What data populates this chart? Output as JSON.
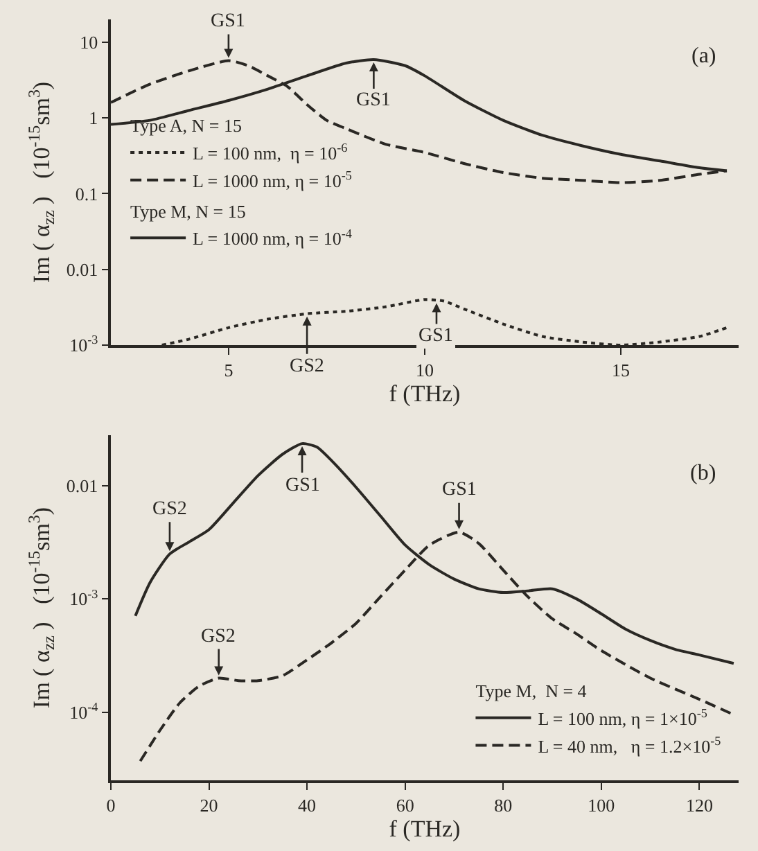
{
  "chart_data": [
    {
      "type": "line",
      "xlabel": "f (THz)",
      "ylabel": "Im ( α$_{zz}$ )   (10$^{-15}$sm$^{3}$)",
      "log": true,
      "legend": "center left",
      "xlim": [
        2,
        18
      ],
      "ylim": [
        0.001,
        20
      ],
      "xticks": [
        5,
        10,
        15
      ],
      "yticks": [
        {
          "value": 10,
          "label": "10"
        },
        1,
        0.1,
        0.01,
        {
          "value": 0.001,
          "label": "10$^{-3}$"
        }
      ],
      "series": [
        {
          "name": "L = 100 nm,  η = 10$^{-6}$",
          "color": "#2a2824",
          "line_style": "dotted",
          "x": [
            3.3,
            4,
            5,
            6,
            7,
            8,
            9,
            10,
            10.5,
            11,
            12,
            13,
            14,
            15,
            16,
            17,
            17.7
          ],
          "values": [
            0.001,
            0.0012,
            0.0017,
            0.0022,
            0.0026,
            0.0028,
            0.0032,
            0.004,
            0.0038,
            0.003,
            0.0019,
            0.0013,
            0.0011,
            0.001,
            0.0011,
            0.0013,
            0.0017
          ]
        },
        {
          "name": "L = 1000 nm, η = 10$^{-5}$",
          "color": "#2a2824",
          "line_style": "dashed",
          "x": [
            2,
            3,
            4,
            5,
            5.5,
            6,
            6.5,
            7,
            7.5,
            8,
            9,
            10,
            11,
            12,
            13,
            14,
            15,
            16,
            17,
            17.7
          ],
          "values": [
            1.6,
            2.8,
            4.2,
            5.7,
            4.9,
            3.6,
            2.6,
            1.5,
            0.93,
            0.72,
            0.45,
            0.35,
            0.25,
            0.19,
            0.16,
            0.15,
            0.14,
            0.15,
            0.18,
            0.2
          ]
        },
        {
          "name": "L = 1000 nm, η = 10$^{-4}$",
          "color": "#2a2824",
          "line_style": "solid",
          "x": [
            2,
            3,
            4,
            5,
            6,
            7,
            8,
            8.7,
            9.5,
            10,
            11,
            12,
            13,
            14,
            15,
            16,
            17,
            17.7
          ],
          "values": [
            0.82,
            0.93,
            1.26,
            1.7,
            2.4,
            3.6,
            5.3,
            5.9,
            4.9,
            3.6,
            1.7,
            0.93,
            0.59,
            0.43,
            0.33,
            0.27,
            0.22,
            0.2
          ]
        }
      ],
      "annotations": [
        "(a)",
        "Type A, N = 15",
        "Type M, N = 15",
        {
          "text": "GS1",
          "x": 5,
          "y": 5.7
        },
        {
          "text": "GS1",
          "x": 8.7,
          "y": 5.9
        },
        {
          "text": "GS2",
          "x": 7,
          "y": 0.0026
        },
        {
          "text": "GS1",
          "x": 10.3,
          "y": 0.0039
        }
      ]
    },
    {
      "type": "line",
      "xlabel": "f (THz)",
      "ylabel": "Im ( α$_{zz}$ )   (10$^{-15}$sm$^{3}$)",
      "log": true,
      "legend": "bottom",
      "xlim": [
        0,
        128
      ],
      "ylim": [
        2.5e-05,
        0.028
      ],
      "xticks": [
        0,
        20,
        40,
        60,
        80,
        100,
        120
      ],
      "yticks": [
        0.01,
        {
          "value": 0.001,
          "label": "10$^{-3}$"
        },
        {
          "value": 0.0001,
          "label": "10$^{-4}$"
        }
      ],
      "series": [
        {
          "name": "L = 100 nm, η = 1×10$^{-5}$",
          "color": "#2a2824",
          "line_style": "solid",
          "x": [
            5,
            8,
            12,
            16,
            20,
            25,
            30,
            35,
            39,
            42,
            45,
            50,
            55,
            60,
            65,
            70,
            75,
            80,
            85,
            90,
            95,
            100,
            105,
            110,
            115,
            120,
            127
          ],
          "values": [
            0.00071,
            0.0014,
            0.0025,
            0.0032,
            0.0041,
            0.0071,
            0.0123,
            0.019,
            0.0236,
            0.022,
            0.0167,
            0.0097,
            0.0054,
            0.003,
            0.002,
            0.0015,
            0.00123,
            0.00114,
            0.00118,
            0.00123,
            0.001,
            0.00074,
            0.00054,
            0.00043,
            0.00036,
            0.00032,
            0.00027
          ]
        },
        {
          "name": "L = 40 nm,   η = 1.2×10$^{-5}$",
          "color": "#2a2824",
          "line_style": "dashed",
          "x": [
            6,
            10,
            14,
            18,
            22,
            26,
            30,
            35,
            40,
            45,
            50,
            55,
            60,
            65,
            71,
            75,
            80,
            85,
            90,
            95,
            100,
            110,
            120,
            127
          ],
          "values": [
            3.7e-05,
            6.9e-05,
            0.00012,
            0.00017,
            0.0002,
            0.00019,
            0.00019,
            0.00021,
            0.00029,
            0.00041,
            0.00061,
            0.00105,
            0.0018,
            0.003,
            0.0039,
            0.0031,
            0.0018,
            0.00105,
            0.00067,
            0.00049,
            0.00035,
            0.0002,
            0.00013,
            9.5e-05
          ]
        }
      ],
      "annotations": [
        "(b)",
        "Type M,  N = 4",
        {
          "text": "GS2",
          "x": 12,
          "y": 0.0025
        },
        {
          "text": "GS1",
          "x": 39,
          "y": 0.0236
        },
        {
          "text": "GS1",
          "x": 71,
          "y": 0.0039
        },
        {
          "text": "GS2",
          "x": 22,
          "y": 0.0002
        }
      ]
    }
  ]
}
